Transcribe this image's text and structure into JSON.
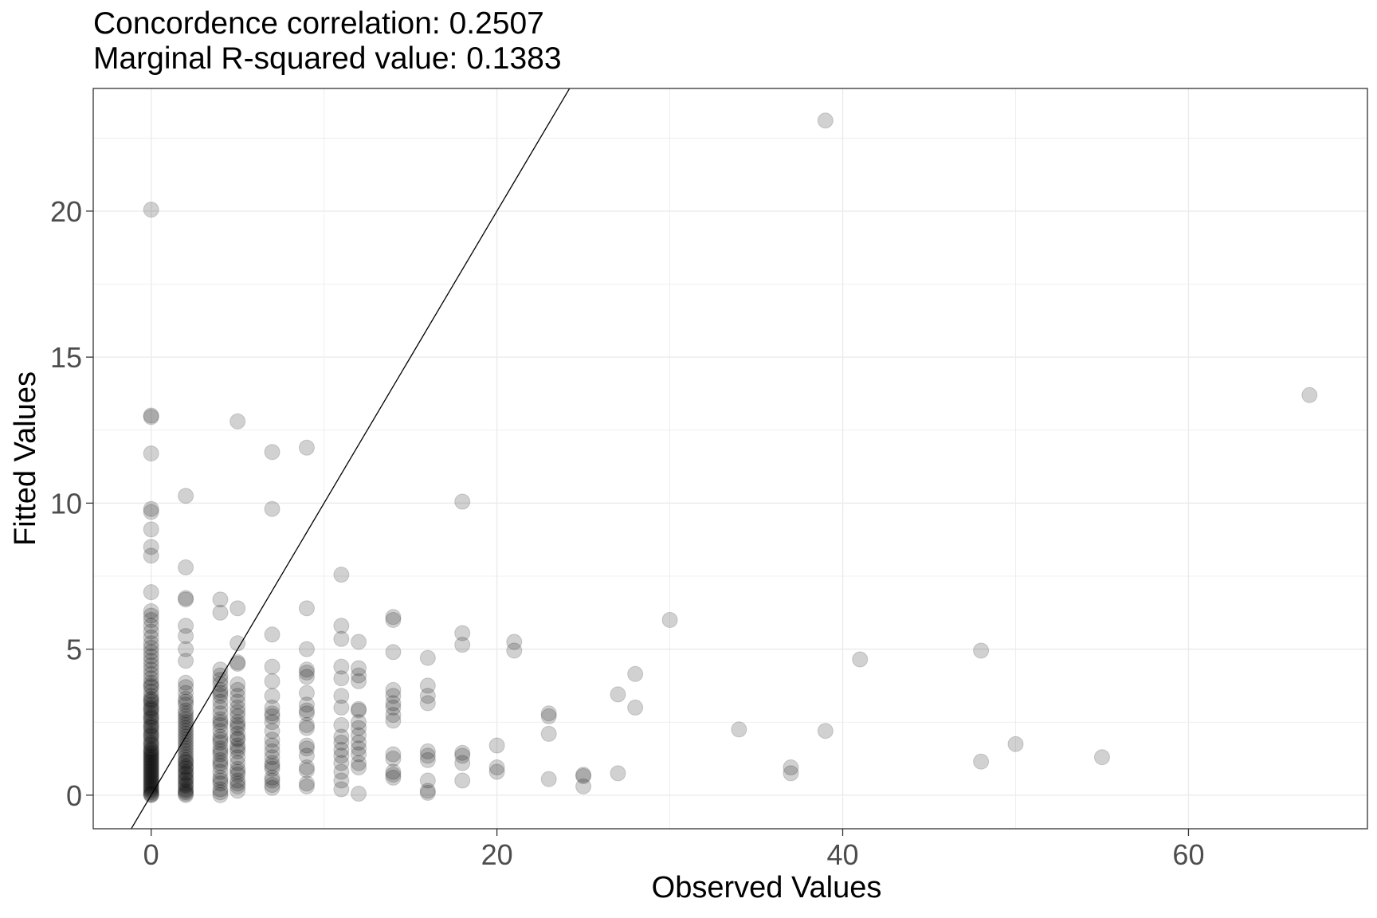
{
  "chart_data": {
    "type": "scatter",
    "title": "Concordence correlation: 0.2507",
    "subtitle": "Marginal R-squared value: 0.1383",
    "xlabel": "Observed Values",
    "ylabel": "Fitted Values",
    "xlim": [
      -3.35,
      70.35
    ],
    "ylim": [
      -1.15,
      24.2
    ],
    "x_ticks": [
      0,
      20,
      40,
      60
    ],
    "y_ticks": [
      0,
      5,
      10,
      15,
      20
    ],
    "x_tick_labels": [
      "0",
      "20",
      "40",
      "60"
    ],
    "y_tick_labels": [
      "0",
      "5",
      "10",
      "15",
      "20"
    ],
    "grid": true,
    "reference_line": {
      "slope": 1,
      "intercept": 0
    },
    "point_alpha": 0.18,
    "series": [
      {
        "x": [
          0,
          0,
          0,
          0,
          0,
          0,
          0,
          0,
          0,
          0,
          0,
          0,
          0,
          0,
          0,
          0,
          0,
          0,
          0,
          0,
          0,
          0,
          0,
          0,
          0,
          0,
          0,
          0,
          0,
          0,
          0,
          0,
          0,
          0,
          0,
          0,
          0,
          0,
          0,
          0,
          0,
          0,
          0,
          0,
          0,
          0,
          0,
          0,
          0,
          0,
          0,
          0,
          0,
          0,
          0,
          0,
          0,
          0,
          0,
          0,
          0,
          0,
          0,
          0,
          0,
          0,
          0,
          0,
          0,
          0,
          0,
          0,
          0,
          0,
          0,
          0,
          0,
          0,
          0,
          0,
          0,
          0,
          0,
          0,
          0,
          0,
          0,
          2,
          2,
          2,
          2,
          2,
          2,
          2,
          2,
          2,
          2,
          2,
          2,
          2,
          2,
          2,
          2,
          2,
          2,
          2,
          2,
          2,
          2,
          2,
          2,
          2,
          2,
          2,
          2,
          2,
          2,
          2,
          2,
          2,
          2,
          2,
          2,
          2,
          2,
          2,
          2,
          2,
          2,
          2,
          2,
          2,
          2,
          2,
          2,
          2,
          2,
          2,
          4,
          4,
          4,
          4,
          4,
          4,
          4,
          4,
          4,
          4,
          4,
          4,
          4,
          4,
          4,
          4,
          4,
          4,
          4,
          4,
          4,
          4,
          4,
          4,
          4,
          4,
          4,
          4,
          4,
          4,
          4,
          4,
          5,
          5,
          5,
          5,
          5,
          5,
          5,
          5,
          5,
          5,
          5,
          5,
          5,
          5,
          5,
          5,
          5,
          5,
          5,
          5,
          5,
          5,
          5,
          5,
          5,
          5,
          5,
          5,
          5,
          5,
          7,
          7,
          7,
          7,
          7,
          7,
          7,
          7,
          7,
          7,
          7,
          7,
          7,
          7,
          7,
          7,
          7,
          7,
          7,
          7,
          7,
          7,
          9,
          9,
          9,
          9,
          9,
          9,
          9,
          9,
          9,
          9,
          9,
          9,
          9,
          9,
          9,
          9,
          9,
          9,
          9,
          11,
          11,
          11,
          11,
          11,
          11,
          11,
          11,
          11,
          11,
          11,
          11,
          11,
          11,
          11,
          11,
          12,
          12,
          12,
          12,
          12,
          12,
          12,
          12,
          12,
          12,
          12,
          12,
          12,
          12,
          12,
          14,
          14,
          14,
          14,
          14,
          14,
          14,
          14,
          14,
          14,
          14,
          14,
          14,
          14,
          16,
          16,
          16,
          16,
          16,
          16,
          16,
          16,
          16,
          16,
          18,
          18,
          18,
          18,
          18,
          18,
          18,
          20,
          20,
          20,
          21,
          21,
          23,
          23,
          23,
          23,
          25,
          25,
          25,
          27,
          27,
          28,
          28,
          30,
          34,
          37,
          37,
          39,
          39,
          41,
          48,
          48,
          50,
          55,
          67
        ],
        "y": [
          20.05,
          13.0,
          12.95,
          11.7,
          9.8,
          9.7,
          9.1,
          8.5,
          8.2,
          6.95,
          6.3,
          6.15,
          6.0,
          5.8,
          5.6,
          5.4,
          5.2,
          5.05,
          4.9,
          4.75,
          4.6,
          4.45,
          4.3,
          4.15,
          4.0,
          3.85,
          3.7,
          3.55,
          3.4,
          3.3,
          3.2,
          3.1,
          3.0,
          2.9,
          2.8,
          2.7,
          2.6,
          2.5,
          2.4,
          2.3,
          2.2,
          2.1,
          2.0,
          1.9,
          1.8,
          1.7,
          1.6,
          1.5,
          1.4,
          1.3,
          1.2,
          1.1,
          1.0,
          0.9,
          0.8,
          0.7,
          0.6,
          0.5,
          0.4,
          0.3,
          0.2,
          0.1,
          0.05,
          0.0,
          3.75,
          3.25,
          2.95,
          2.65,
          2.35,
          2.05,
          1.75,
          1.45,
          1.15,
          0.85,
          0.55,
          0.25,
          0.02,
          0.15,
          0.35,
          0.45,
          0.65,
          0.75,
          0.95,
          1.05,
          1.25,
          1.35,
          1.55,
          10.25,
          7.8,
          6.75,
          6.7,
          5.8,
          5.45,
          5.0,
          4.6,
          3.85,
          3.7,
          3.5,
          3.3,
          3.1,
          2.9,
          2.7,
          2.5,
          2.3,
          2.1,
          1.9,
          1.7,
          1.5,
          1.3,
          1.1,
          0.9,
          0.7,
          0.5,
          0.3,
          0.1,
          0.0,
          2.6,
          2.4,
          2.2,
          2.0,
          1.8,
          1.6,
          1.4,
          1.2,
          1.0,
          0.8,
          0.6,
          0.4,
          0.2,
          0.05,
          0.15,
          0.35,
          0.55,
          0.75,
          0.95,
          1.15,
          3.2,
          2.8,
          6.7,
          6.25,
          4.3,
          4.1,
          3.95,
          3.8,
          3.6,
          3.4,
          3.2,
          3.0,
          2.8,
          2.6,
          2.4,
          2.2,
          2.0,
          1.8,
          1.6,
          1.4,
          1.2,
          1.0,
          0.8,
          0.6,
          0.4,
          0.2,
          0.1,
          0.0,
          3.5,
          2.5,
          1.5,
          0.5,
          1.9,
          1.1,
          12.8,
          6.4,
          5.2,
          4.55,
          4.5,
          3.8,
          3.6,
          3.4,
          3.2,
          3.0,
          2.85,
          2.7,
          2.5,
          2.3,
          2.1,
          1.9,
          1.7,
          1.5,
          1.3,
          1.1,
          0.9,
          0.7,
          0.5,
          0.3,
          0.15,
          2.4,
          1.6,
          0.8,
          0.4,
          1.95,
          11.75,
          9.8,
          5.5,
          4.4,
          3.9,
          3.4,
          3.0,
          2.7,
          2.5,
          2.2,
          1.9,
          1.7,
          1.3,
          1.1,
          1.0,
          0.9,
          0.6,
          0.5,
          0.35,
          0.25,
          2.8,
          1.5,
          11.9,
          6.4,
          5.0,
          4.3,
          4.2,
          4.05,
          3.5,
          2.9,
          2.8,
          2.4,
          2.3,
          1.7,
          1.35,
          0.95,
          0.85,
          0.4,
          0.3,
          3.1,
          1.6,
          7.55,
          5.8,
          5.35,
          4.4,
          4.0,
          3.4,
          3.0,
          2.4,
          2.0,
          1.8,
          1.55,
          1.35,
          1.1,
          0.8,
          0.5,
          0.2,
          5.25,
          4.35,
          4.1,
          3.9,
          2.95,
          2.9,
          2.5,
          2.3,
          2.05,
          1.6,
          1.4,
          1.1,
          0.95,
          0.05,
          1.8,
          6.1,
          6.0,
          4.9,
          3.6,
          3.4,
          3.15,
          3.0,
          2.75,
          2.55,
          1.4,
          1.25,
          0.8,
          0.7,
          0.6,
          4.7,
          3.75,
          3.4,
          3.15,
          1.5,
          1.35,
          1.2,
          0.5,
          0.15,
          0.08,
          5.55,
          5.15,
          10.05,
          1.45,
          1.35,
          1.1,
          0.5,
          1.7,
          0.95,
          0.8,
          5.25,
          4.95,
          2.8,
          2.7,
          2.1,
          0.55,
          0.7,
          0.65,
          0.3,
          3.45,
          0.75,
          4.15,
          3.0,
          6.0,
          2.25,
          0.95,
          0.75,
          23.1,
          2.2,
          4.65,
          4.95,
          1.15,
          1.75,
          1.3,
          13.7
        ]
      }
    ]
  }
}
